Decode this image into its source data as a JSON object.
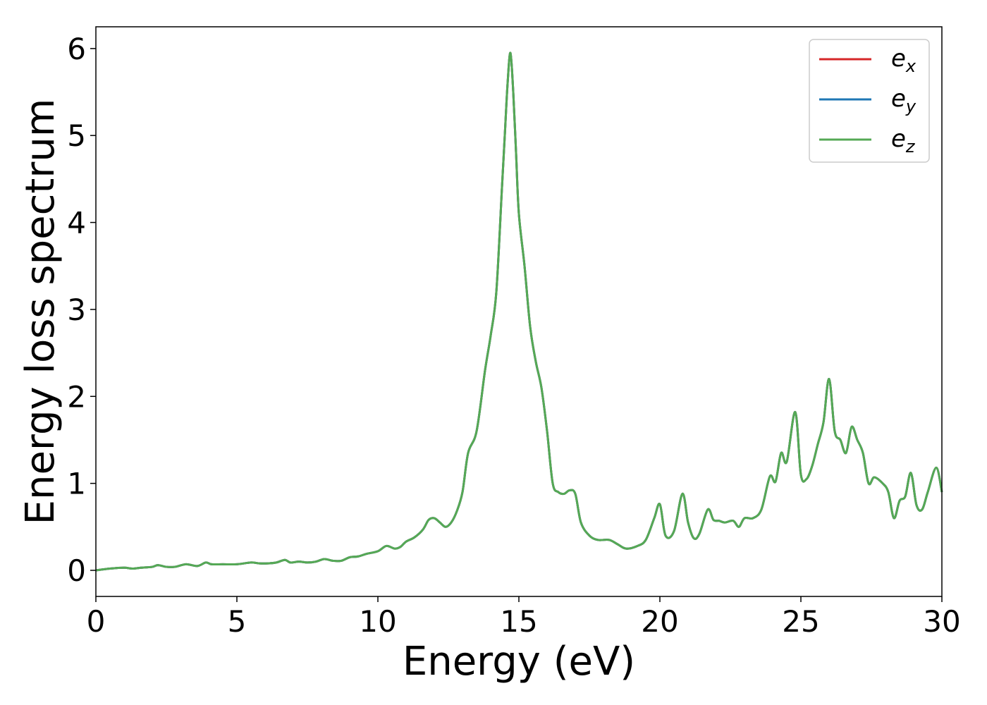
{
  "chart_data": {
    "type": "line",
    "xlabel": "Energy (eV)",
    "ylabel": "Energy loss spectrum",
    "xlim": [
      0,
      30
    ],
    "ylim": [
      -0.3,
      6.25
    ],
    "xticks": [
      "0",
      "5",
      "10",
      "15",
      "20",
      "25",
      "30"
    ],
    "yticks": [
      "0",
      "1",
      "2",
      "3",
      "4",
      "5",
      "6"
    ],
    "grid": false,
    "legend_position": "top-right",
    "series": [
      {
        "name": "e",
        "subscript": "x",
        "color": "#d62728"
      },
      {
        "name": "e",
        "subscript": "y",
        "color": "#1f77b4"
      },
      {
        "name": "e",
        "subscript": "z",
        "color": "#55a955"
      }
    ],
    "x": [
      0.0,
      0.5,
      1.0,
      1.3,
      1.6,
      2.0,
      2.2,
      2.5,
      2.8,
      3.2,
      3.6,
      3.9,
      4.1,
      4.5,
      5.0,
      5.5,
      5.8,
      6.1,
      6.4,
      6.7,
      6.9,
      7.2,
      7.5,
      7.8,
      8.1,
      8.4,
      8.7,
      9.0,
      9.3,
      9.6,
      10.0,
      10.3,
      10.6,
      10.8,
      11.0,
      11.3,
      11.6,
      11.8,
      12.0,
      12.2,
      12.4,
      12.6,
      12.8,
      13.0,
      13.2,
      13.5,
      13.8,
      14.0,
      14.2,
      14.4,
      14.5,
      14.6,
      14.7,
      14.8,
      14.9,
      15.0,
      15.2,
      15.4,
      15.6,
      15.8,
      16.0,
      16.2,
      16.4,
      16.6,
      16.8,
      17.0,
      17.2,
      17.5,
      17.8,
      18.2,
      18.5,
      18.8,
      19.2,
      19.5,
      19.8,
      20.0,
      20.2,
      20.5,
      20.8,
      21.0,
      21.2,
      21.4,
      21.7,
      21.9,
      22.1,
      22.3,
      22.6,
      22.8,
      23.0,
      23.3,
      23.6,
      23.9,
      24.1,
      24.3,
      24.5,
      24.8,
      25.0,
      25.2,
      25.4,
      25.6,
      25.8,
      26.0,
      26.2,
      26.4,
      26.6,
      26.8,
      27.0,
      27.2,
      27.4,
      27.6,
      27.9,
      28.1,
      28.3,
      28.5,
      28.7,
      28.9,
      29.1,
      29.3,
      29.5,
      29.8,
      30.0
    ],
    "values": [
      0.0,
      0.02,
      0.03,
      0.02,
      0.03,
      0.04,
      0.06,
      0.04,
      0.04,
      0.07,
      0.05,
      0.09,
      0.07,
      0.07,
      0.07,
      0.09,
      0.08,
      0.08,
      0.09,
      0.12,
      0.09,
      0.1,
      0.09,
      0.1,
      0.13,
      0.11,
      0.11,
      0.15,
      0.16,
      0.19,
      0.22,
      0.28,
      0.25,
      0.27,
      0.33,
      0.38,
      0.47,
      0.58,
      0.6,
      0.55,
      0.5,
      0.55,
      0.68,
      0.9,
      1.35,
      1.6,
      2.3,
      2.7,
      3.2,
      4.4,
      5.0,
      5.6,
      5.95,
      5.5,
      4.8,
      4.1,
      3.5,
      2.8,
      2.4,
      2.1,
      1.6,
      1.0,
      0.9,
      0.88,
      0.92,
      0.88,
      0.55,
      0.4,
      0.35,
      0.35,
      0.3,
      0.25,
      0.28,
      0.35,
      0.6,
      0.76,
      0.4,
      0.45,
      0.88,
      0.55,
      0.37,
      0.42,
      0.7,
      0.58,
      0.57,
      0.55,
      0.57,
      0.5,
      0.6,
      0.6,
      0.7,
      1.08,
      1.02,
      1.35,
      1.25,
      1.82,
      1.1,
      1.05,
      1.2,
      1.45,
      1.7,
      2.2,
      1.6,
      1.5,
      1.35,
      1.65,
      1.5,
      1.35,
      1.0,
      1.07,
      1.0,
      0.9,
      0.6,
      0.8,
      0.85,
      1.12,
      0.75,
      0.7,
      0.9,
      1.18,
      0.9
    ]
  }
}
